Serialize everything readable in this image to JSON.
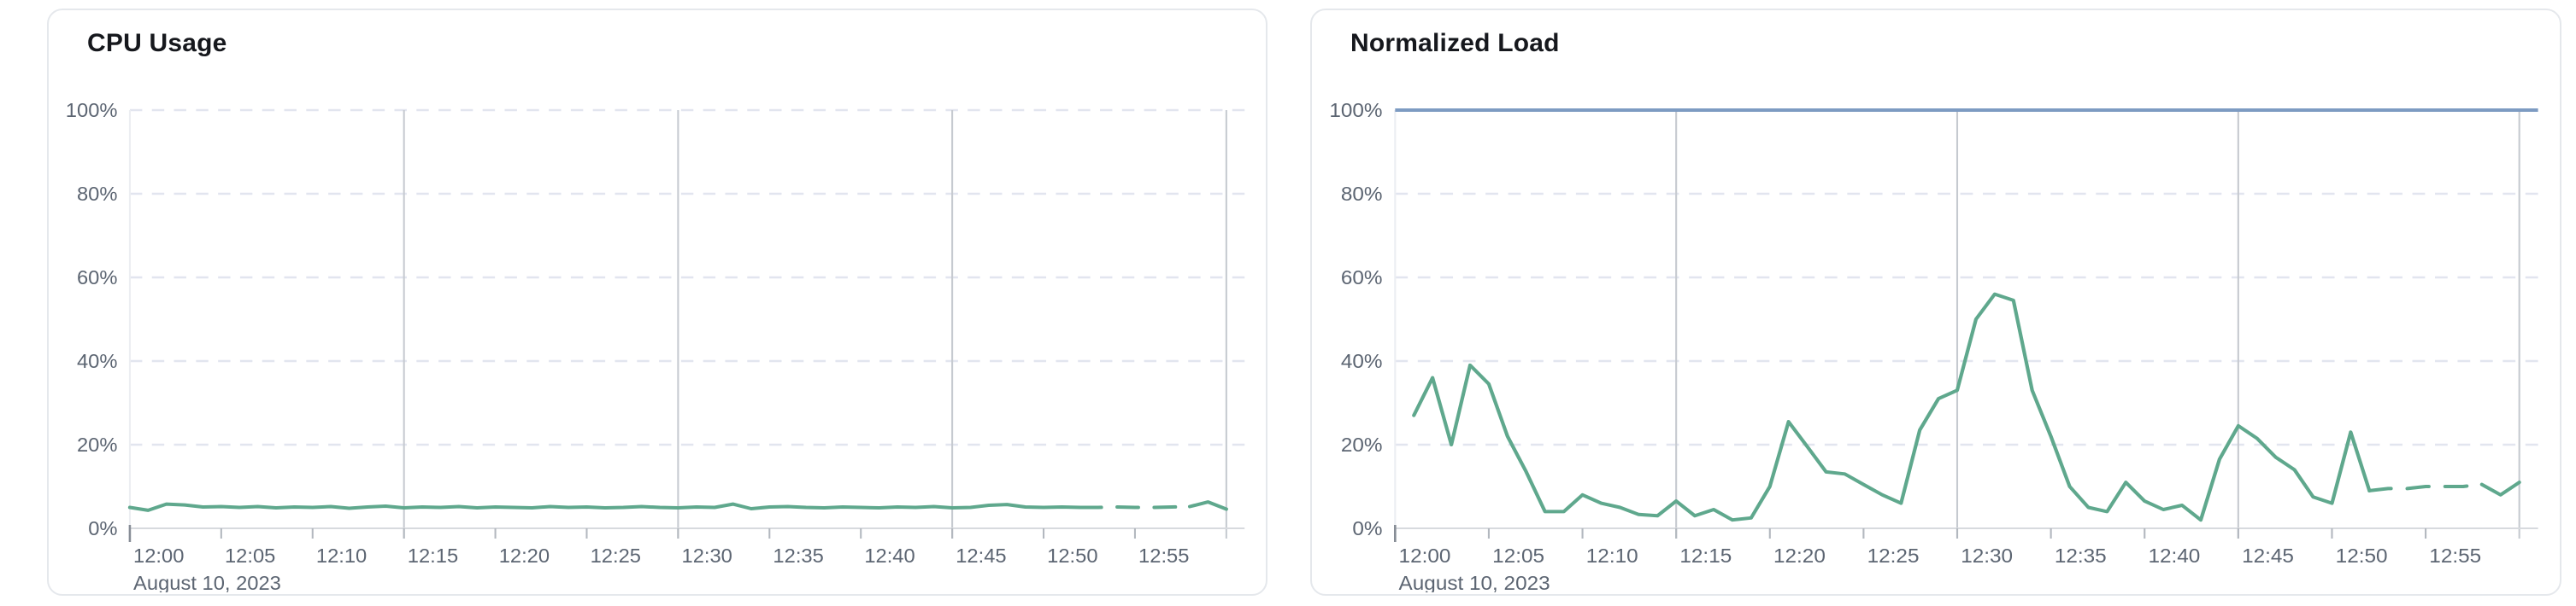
{
  "page": {
    "background": "#ffffff"
  },
  "chart_data": [
    {
      "type": "line",
      "title": "CPU Usage",
      "date_label": "August 10, 2023",
      "ylabel_unit": "%",
      "ylim": [
        0,
        100
      ],
      "y_tick_labels": [
        "0%",
        "20%",
        "40%",
        "60%",
        "80%",
        "100%"
      ],
      "y_grid_dashed_values": [
        20,
        40,
        60,
        80,
        100
      ],
      "x_tick_labels": [
        "12:00",
        "12:05",
        "12:10",
        "12:15",
        "12:20",
        "12:25",
        "12:30",
        "12:35",
        "12:40",
        "12:45",
        "12:50",
        "12:55"
      ],
      "x_tick_minutes": [
        0,
        5,
        10,
        15,
        20,
        25,
        30,
        35,
        40,
        45,
        50,
        55
      ],
      "x_grid_minutes": [
        15,
        30,
        45,
        60
      ],
      "x_domain_minutes": [
        0,
        61
      ],
      "grid_on": true,
      "legend": "none",
      "series": [
        {
          "name": "cpu-usage",
          "color": "#5fa88d",
          "start_minute": 0,
          "dashed_from_index": 52,
          "solid_tail_from_index": 58,
          "values": [
            5,
            4.3,
            5.8,
            5.6,
            5.1,
            5.2,
            5,
            5.2,
            4.9,
            5.1,
            5,
            5.2,
            4.8,
            5.1,
            5.3,
            4.9,
            5.1,
            5,
            5.2,
            4.9,
            5.1,
            5,
            4.9,
            5.2,
            5,
            5.1,
            4.9,
            5,
            5.2,
            5,
            4.9,
            5.1,
            5,
            5.8,
            4.7,
            5.1,
            5.2,
            5,
            4.9,
            5.1,
            5,
            4.9,
            5.1,
            5,
            5.2,
            4.9,
            5,
            5.5,
            5.7,
            5.1,
            5,
            5.1,
            5,
            5,
            5.1,
            5,
            5,
            5.1,
            5.2,
            6.3,
            4.6
          ]
        }
      ]
    },
    {
      "type": "line",
      "title": "Normalized Load",
      "date_label": "August 10, 2023",
      "ylabel_unit": "%",
      "ylim": [
        0,
        100
      ],
      "y_tick_labels": [
        "0%",
        "20%",
        "40%",
        "60%",
        "80%",
        "100%"
      ],
      "y_grid_dashed_values": [
        20,
        40,
        60,
        80
      ],
      "x_tick_labels": [
        "12:00",
        "12:05",
        "12:10",
        "12:15",
        "12:20",
        "12:25",
        "12:30",
        "12:35",
        "12:40",
        "12:45",
        "12:50",
        "12:55"
      ],
      "x_tick_minutes": [
        0,
        5,
        10,
        15,
        20,
        25,
        30,
        35,
        40,
        45,
        50,
        55
      ],
      "x_grid_minutes": [
        15,
        30,
        45,
        60
      ],
      "x_domain_minutes": [
        0,
        61
      ],
      "grid_on": true,
      "legend": "none",
      "reference_line": {
        "value": 100,
        "color": "#7d9bc2"
      },
      "series": [
        {
          "name": "normalized-load",
          "color": "#5fa88d",
          "start_minute": 1,
          "dashed_from_index": 51,
          "solid_tail_from_index": 57,
          "values": [
            27,
            36,
            20,
            39,
            34.5,
            22,
            13.5,
            4,
            4,
            8,
            6,
            5,
            3.3,
            3,
            6.5,
            3,
            4.5,
            2,
            2.5,
            10,
            25.5,
            19.5,
            13.5,
            13,
            10.5,
            8,
            6,
            23.5,
            31,
            33,
            50,
            56,
            54.5,
            33,
            22,
            10,
            5,
            4,
            11,
            6.5,
            4.5,
            5.5,
            2,
            16.5,
            24.5,
            21.5,
            17,
            14,
            7.5,
            6,
            23,
            9,
            9.5,
            9.5,
            10,
            10,
            10,
            10.5,
            8,
            11
          ]
        }
      ]
    }
  ],
  "style_colors": {
    "series_green": "#5fa88d",
    "reference_blue": "#7d9bc2",
    "grid_dashed": "#e2e5ef",
    "grid_solid_vertical": "#c6cad0",
    "axis_baseline": "#d7dade",
    "tick_mark": "#b3b8bf",
    "axis_label_text": "#5c6572",
    "title_text": "#16181d",
    "card_border": "#e5e8ec"
  }
}
